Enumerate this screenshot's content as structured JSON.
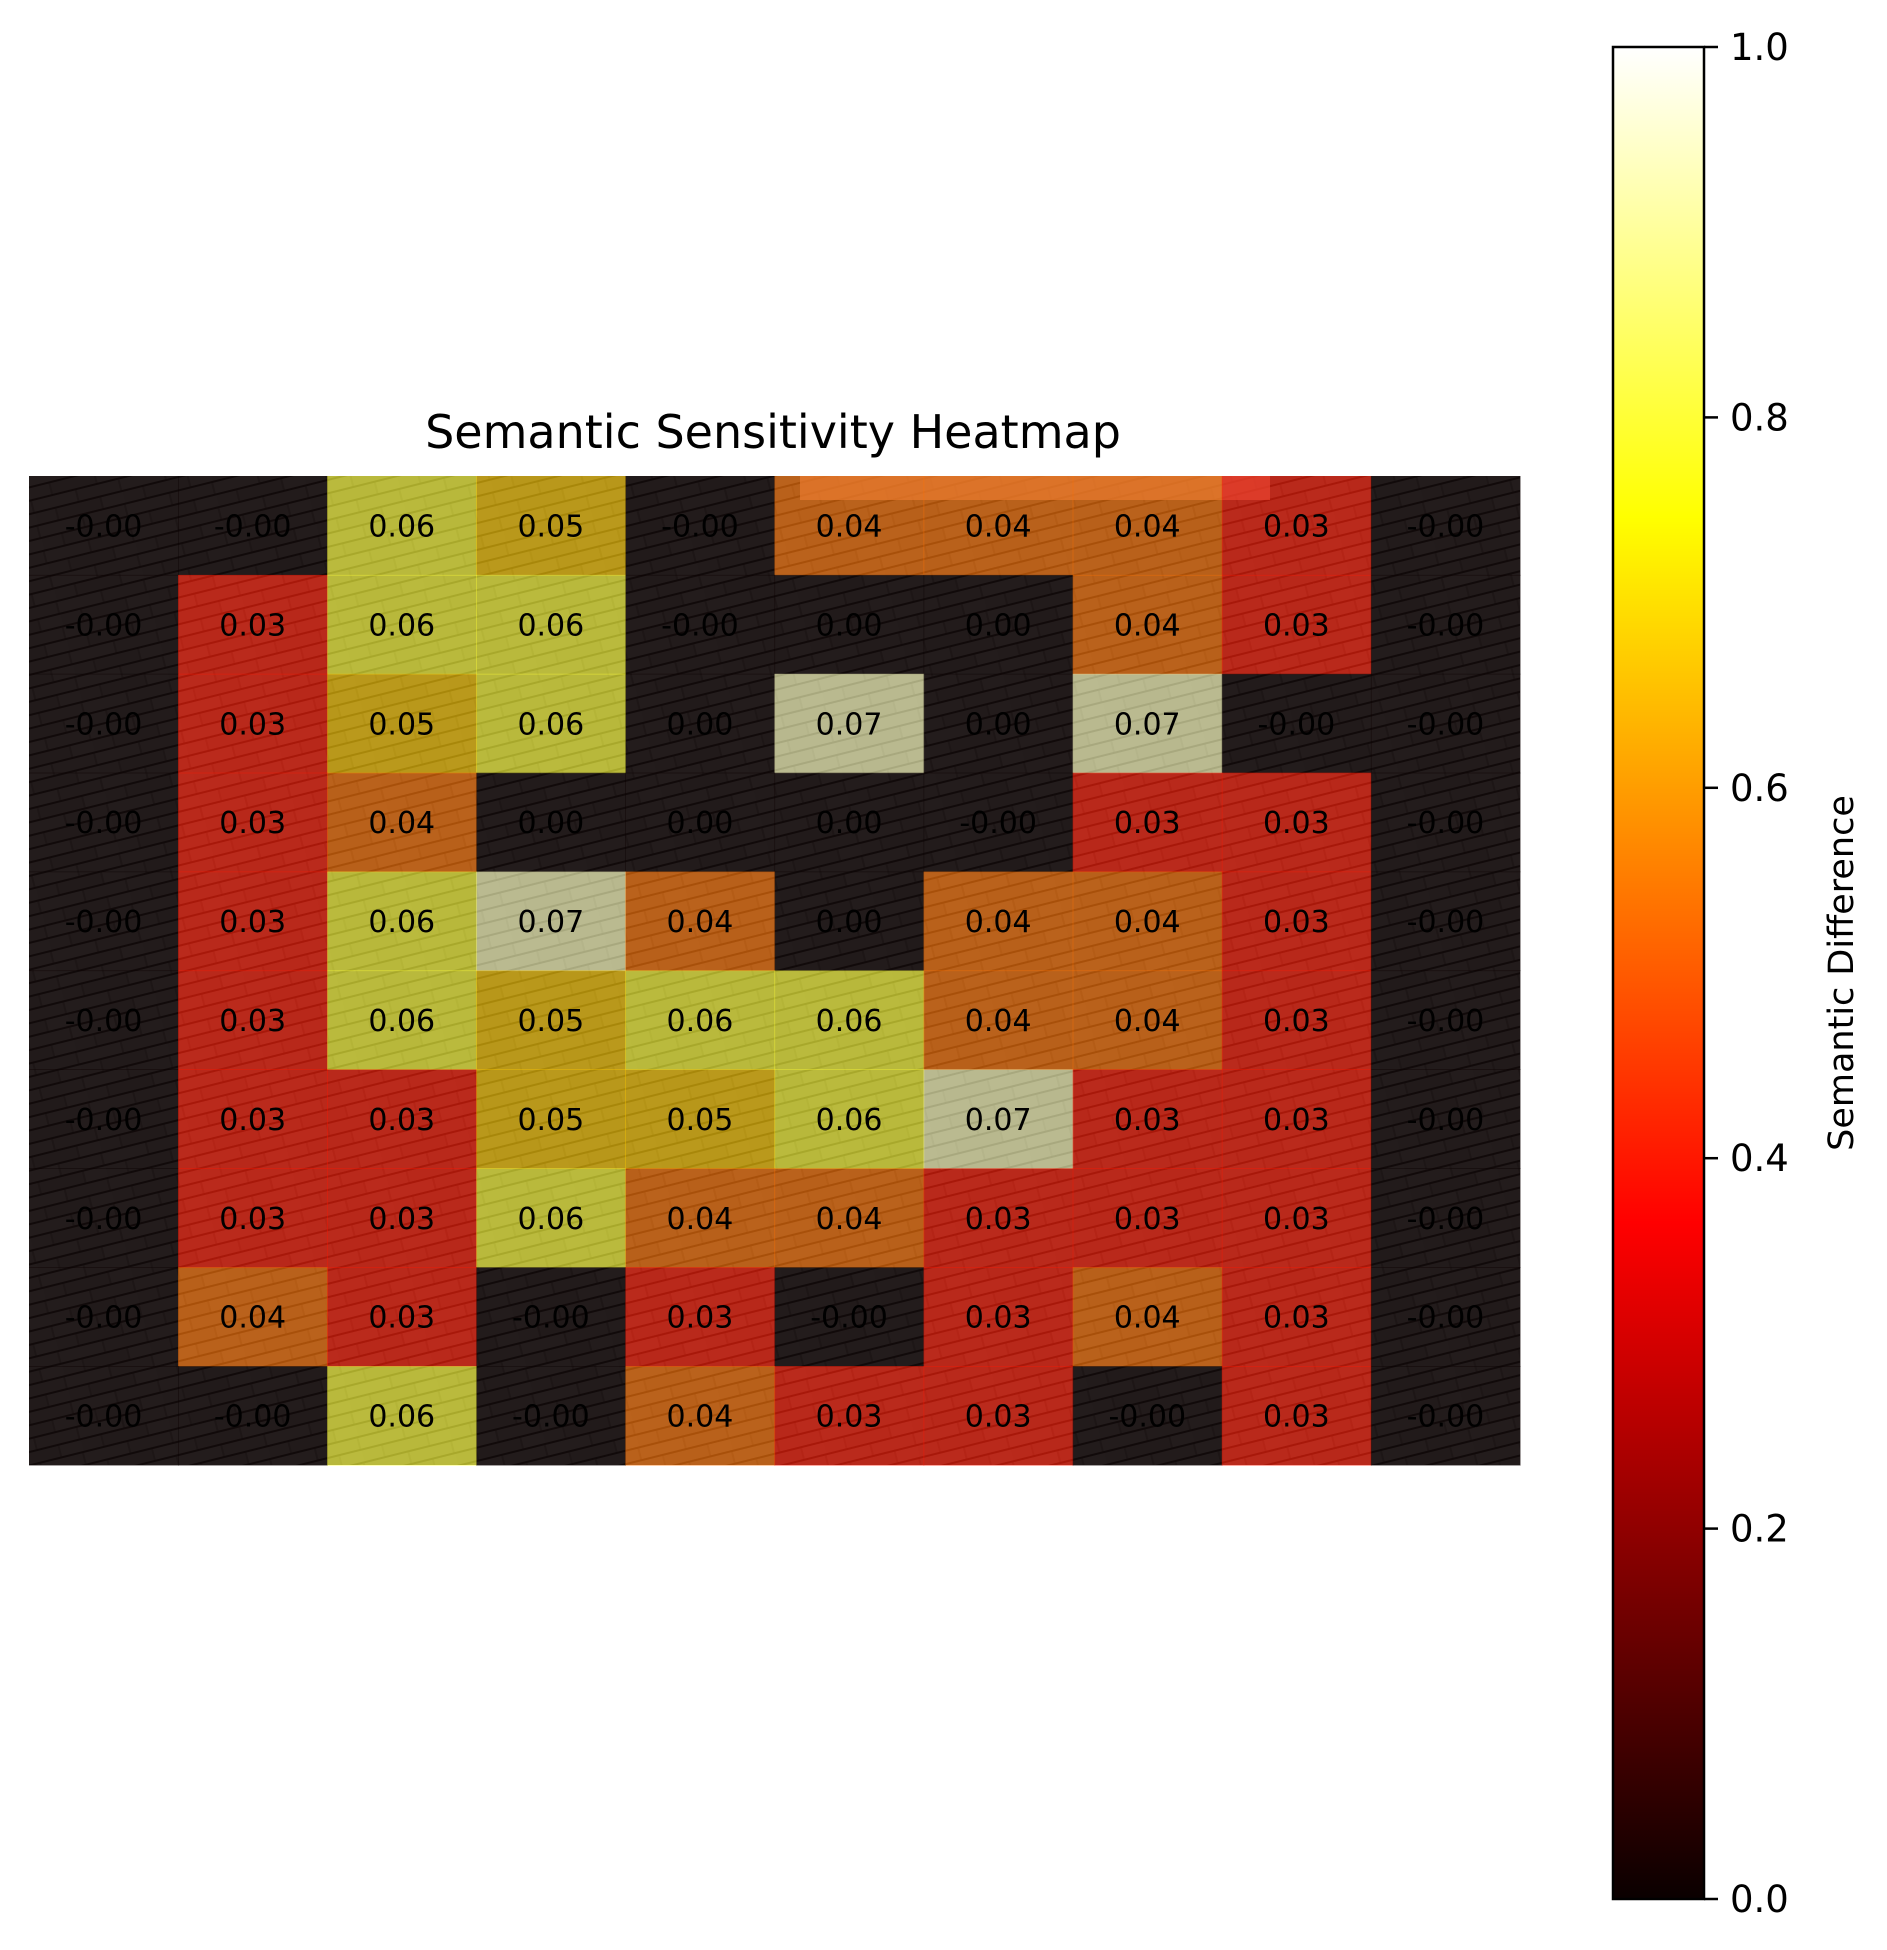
{
  "chart_data": {
    "type": "heatmap",
    "title": "Semantic Sensitivity Heatmap",
    "rows": 10,
    "cols": 10,
    "values": [
      [
        "-0.00",
        "-0.00",
        "0.06",
        "0.05",
        "-0.00",
        "0.04",
        "0.04",
        "0.04",
        "0.03",
        "-0.00"
      ],
      [
        "-0.00",
        "0.03",
        "0.06",
        "0.06",
        "-0.00",
        "0.00",
        "0.00",
        "0.04",
        "0.03",
        "-0.00"
      ],
      [
        "-0.00",
        "0.03",
        "0.05",
        "0.06",
        "0.00",
        "0.07",
        "0.00",
        "0.07",
        "-0.00",
        "-0.00"
      ],
      [
        "-0.00",
        "0.03",
        "0.04",
        "0.00",
        "0.00",
        "0.00",
        "-0.00",
        "0.03",
        "0.03",
        "-0.00"
      ],
      [
        "-0.00",
        "0.03",
        "0.06",
        "0.07",
        "0.04",
        "0.00",
        "0.04",
        "0.04",
        "0.03",
        "-0.00"
      ],
      [
        "-0.00",
        "0.03",
        "0.06",
        "0.05",
        "0.06",
        "0.06",
        "0.04",
        "0.04",
        "0.03",
        "-0.00"
      ],
      [
        "-0.00",
        "0.03",
        "0.03",
        "0.05",
        "0.05",
        "0.06",
        "0.07",
        "0.03",
        "0.03",
        "-0.00"
      ],
      [
        "-0.00",
        "0.03",
        "0.03",
        "0.06",
        "0.04",
        "0.04",
        "0.03",
        "0.03",
        "0.03",
        "-0.00"
      ],
      [
        "-0.00",
        "0.04",
        "0.03",
        "-0.00",
        "0.03",
        "-0.00",
        "0.03",
        "0.04",
        "0.03",
        "-0.00"
      ],
      [
        "-0.00",
        "-0.00",
        "0.06",
        "-0.00",
        "0.04",
        "0.03",
        "0.03",
        "-0.00",
        "0.03",
        "-0.00"
      ]
    ],
    "colorbar": {
      "label": "Semantic Difference",
      "colormap": "hot",
      "range": [
        0.0,
        1.0
      ],
      "ticks": [
        "0.0",
        "0.2",
        "0.4",
        "0.6",
        "0.8",
        "1.0"
      ]
    },
    "background": "photo of dark shingled roof"
  }
}
